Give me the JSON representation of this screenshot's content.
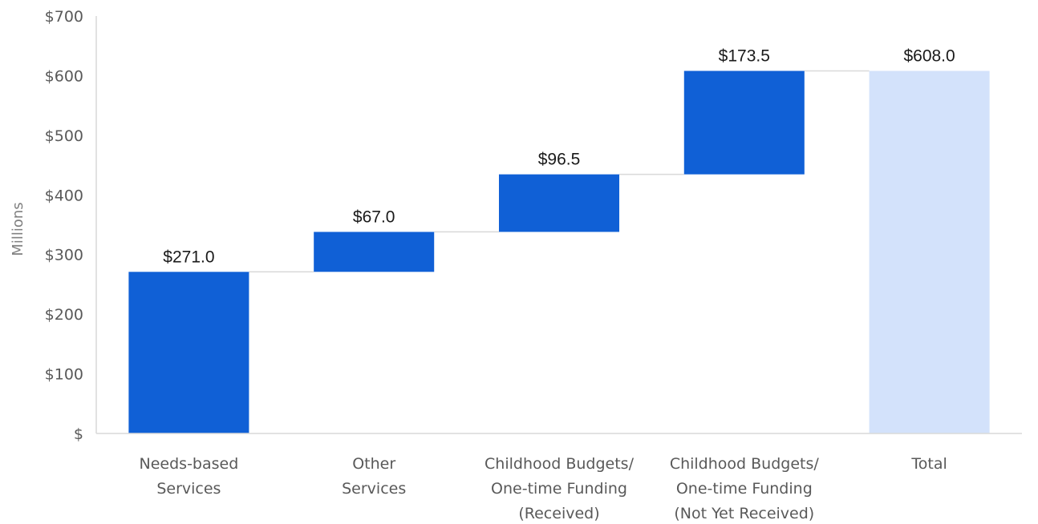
{
  "chart_data": {
    "type": "bar",
    "subtype": "waterfall",
    "title": "",
    "xlabel": "",
    "ylabel": "Millions",
    "ylim": [
      0,
      700
    ],
    "yticks": [
      0,
      100,
      200,
      300,
      400,
      500,
      600,
      700
    ],
    "ytick_labels": [
      "$",
      "$100",
      "$200",
      "$300",
      "$400",
      "$500",
      "$600",
      "$700"
    ],
    "grid": false,
    "categories": [
      [
        "Needs-based",
        "Services"
      ],
      [
        "Other",
        "Services"
      ],
      [
        "Childhood Budgets/",
        "One-time Funding",
        "(Received)"
      ],
      [
        "Childhood Budgets/",
        "One-time Funding",
        "(Not Yet Received)"
      ],
      [
        "Total"
      ]
    ],
    "values": [
      271.0,
      67.0,
      96.5,
      173.5,
      608.0
    ],
    "data_labels": [
      "$271.0",
      "$67.0",
      "$96.5",
      "$173.5",
      "$608.0"
    ],
    "is_total": [
      false,
      false,
      false,
      false,
      true
    ],
    "colors": {
      "increment": "#1060D6",
      "total": "#D3E2FB",
      "connector": "#D9D9D9",
      "axis": "#D9D9D9"
    }
  }
}
